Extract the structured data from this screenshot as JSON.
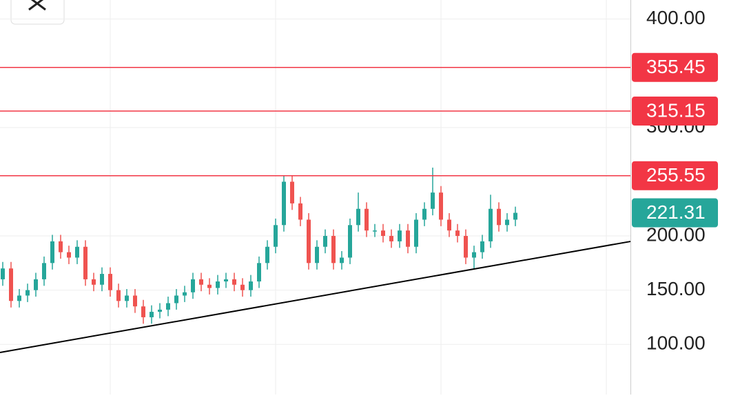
{
  "chart_data": {
    "type": "candlestick",
    "up_color": "#26a69a",
    "down_color": "#ef5350",
    "ylim": [
      53.7,
      417.6
    ],
    "yticks": [
      {
        "value": 100,
        "label": "100.00"
      },
      {
        "value": 150,
        "label": "150.00"
      },
      {
        "value": 200,
        "label": "200.00"
      },
      {
        "value": 300,
        "label": "300.00"
      },
      {
        "value": 400,
        "label": "400.00"
      }
    ],
    "grid": true,
    "open": [
      160,
      170,
      140,
      145,
      150,
      160,
      175,
      195,
      185,
      180,
      190,
      160,
      155,
      165,
      150,
      140,
      145,
      135,
      125,
      130,
      132,
      138,
      145,
      148,
      160,
      155,
      152,
      158,
      160,
      155,
      150,
      158,
      175,
      190,
      210,
      250,
      230,
      215,
      175,
      190,
      200,
      175,
      180,
      210,
      225,
      205,
      205,
      200,
      195,
      205,
      190,
      215,
      225,
      240,
      215,
      205,
      200,
      180,
      185,
      195,
      225,
      210,
      215
    ],
    "high": [
      176,
      176,
      151,
      156,
      166,
      181,
      201,
      201,
      191,
      196,
      196,
      166,
      171,
      171,
      156,
      151,
      151,
      141,
      136,
      138,
      144,
      151,
      154,
      166,
      166,
      161,
      164,
      166,
      166,
      161,
      164,
      181,
      196,
      216,
      256,
      256,
      236,
      221,
      196,
      206,
      206,
      186,
      216,
      240,
      231,
      211,
      211,
      206,
      211,
      211,
      221,
      231,
      263,
      246,
      221,
      211,
      206,
      191,
      201,
      238,
      231,
      221,
      227
    ],
    "low": [
      154,
      134,
      134,
      139,
      144,
      154,
      169,
      179,
      174,
      174,
      154,
      149,
      149,
      144,
      134,
      134,
      129,
      119,
      119,
      124,
      126,
      132,
      139,
      142,
      149,
      146,
      146,
      152,
      149,
      144,
      144,
      152,
      169,
      184,
      204,
      224,
      209,
      169,
      169,
      184,
      169,
      169,
      174,
      204,
      199,
      199,
      194,
      189,
      189,
      184,
      184,
      209,
      219,
      209,
      199,
      194,
      174,
      170,
      179,
      189,
      204,
      204,
      209
    ],
    "close": [
      170,
      140,
      145,
      150,
      160,
      175,
      195,
      185,
      180,
      190,
      160,
      155,
      165,
      150,
      140,
      145,
      135,
      125,
      130,
      132,
      138,
      145,
      148,
      160,
      155,
      152,
      158,
      160,
      155,
      150,
      158,
      175,
      190,
      210,
      250,
      230,
      215,
      175,
      190,
      200,
      175,
      180,
      210,
      225,
      205,
      205,
      200,
      195,
      205,
      190,
      215,
      225,
      240,
      215,
      205,
      200,
      180,
      185,
      195,
      225,
      210,
      215,
      221.31
    ],
    "price_lines": [
      {
        "value": 355.45,
        "color": "#f23645"
      },
      {
        "value": 315.15,
        "color": "#f23645"
      },
      {
        "value": 255.55,
        "color": "#f23645"
      }
    ],
    "last_price": {
      "value": 221.31,
      "color": "#26a69a"
    },
    "trendline": {
      "start": 92.5,
      "end": 194.9,
      "color": "#000000"
    }
  }
}
